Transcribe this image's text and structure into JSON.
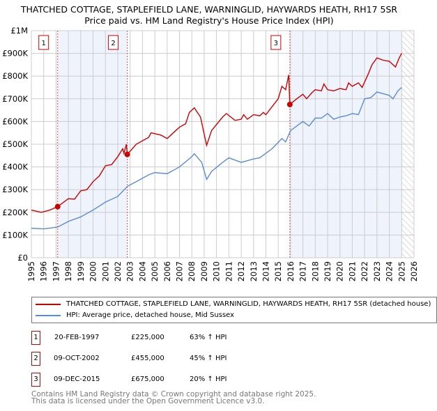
{
  "chart_data": {
    "type": "line",
    "title": "THATCHED COTTAGE, STAPLEFIELD LANE, WARNINGLID, HAYWARDS HEATH, RH17 5SR",
    "subtitle": "Price paid vs. HM Land Registry's House Price Index (HPI)",
    "xlim": [
      1995,
      2026
    ],
    "ylim": [
      0,
      1000000
    ],
    "x_ticks": [
      "1995",
      "1996",
      "1997",
      "1998",
      "1999",
      "2000",
      "2001",
      "2002",
      "2003",
      "2004",
      "2005",
      "2006",
      "2007",
      "2008",
      "2009",
      "2010",
      "2011",
      "2012",
      "2013",
      "2014",
      "2015",
      "2016",
      "2017",
      "2018",
      "2019",
      "2020",
      "2021",
      "2022",
      "2023",
      "2024",
      "2025",
      "2026"
    ],
    "y_ticks": [
      {
        "v": 0,
        "label": "£0"
      },
      {
        "v": 100000,
        "label": "£100K"
      },
      {
        "v": 200000,
        "label": "£200K"
      },
      {
        "v": 300000,
        "label": "£300K"
      },
      {
        "v": 400000,
        "label": "£400K"
      },
      {
        "v": 500000,
        "label": "£500K"
      },
      {
        "v": 600000,
        "label": "£600K"
      },
      {
        "v": 700000,
        "label": "£700K"
      },
      {
        "v": 800000,
        "label": "£800K"
      },
      {
        "v": 900000,
        "label": "£900K"
      },
      {
        "v": 1000000,
        "label": "£1M"
      }
    ],
    "grid": true,
    "series": [
      {
        "name": "THATCHED COTTAGE, STAPLEFIELD LANE, WARNINGLID, HAYWARDS HEATH, RH17 5SR (detached house)",
        "color": "#cc0000",
        "points": [
          [
            1995,
            210000
          ],
          [
            1995.8,
            200000
          ],
          [
            1996.5,
            210000
          ],
          [
            1997.13,
            225000
          ],
          [
            1998,
            260000
          ],
          [
            1998.5,
            258000
          ],
          [
            1999,
            295000
          ],
          [
            1999.5,
            300000
          ],
          [
            2000,
            335000
          ],
          [
            2000.5,
            360000
          ],
          [
            2001,
            405000
          ],
          [
            2001.5,
            410000
          ],
          [
            2002,
            445000
          ],
          [
            2002.4,
            480000
          ],
          [
            2002.5,
            460000
          ],
          [
            2002.7,
            500000
          ],
          [
            2002.77,
            455000
          ],
          [
            2003.5,
            500000
          ],
          [
            2004.5,
            530000
          ],
          [
            2004.7,
            550000
          ],
          [
            2005.5,
            540000
          ],
          [
            2006,
            525000
          ],
          [
            2006.5,
            550000
          ],
          [
            2007,
            575000
          ],
          [
            2007.5,
            590000
          ],
          [
            2007.8,
            640000
          ],
          [
            2008.2,
            660000
          ],
          [
            2008.7,
            620000
          ],
          [
            2009.2,
            495000
          ],
          [
            2009.6,
            560000
          ],
          [
            2010.5,
            620000
          ],
          [
            2010.8,
            635000
          ],
          [
            2011.5,
            605000
          ],
          [
            2012,
            610000
          ],
          [
            2012.2,
            630000
          ],
          [
            2012.5,
            610000
          ],
          [
            2013,
            630000
          ],
          [
            2013.5,
            625000
          ],
          [
            2013.8,
            640000
          ],
          [
            2014,
            630000
          ],
          [
            2014.5,
            665000
          ],
          [
            2015,
            700000
          ],
          [
            2015.3,
            755000
          ],
          [
            2015.6,
            740000
          ],
          [
            2015.85,
            805000
          ],
          [
            2015.94,
            675000
          ],
          [
            2016.5,
            700000
          ],
          [
            2017,
            720000
          ],
          [
            2017.3,
            700000
          ],
          [
            2017.7,
            725000
          ],
          [
            2018,
            740000
          ],
          [
            2018.5,
            735000
          ],
          [
            2018.7,
            765000
          ],
          [
            2019,
            740000
          ],
          [
            2019.5,
            735000
          ],
          [
            2020,
            745000
          ],
          [
            2020.5,
            740000
          ],
          [
            2020.7,
            770000
          ],
          [
            2021,
            755000
          ],
          [
            2021.5,
            770000
          ],
          [
            2021.8,
            750000
          ],
          [
            2022.3,
            810000
          ],
          [
            2022.6,
            850000
          ],
          [
            2023,
            880000
          ],
          [
            2023.5,
            870000
          ],
          [
            2024,
            865000
          ],
          [
            2024.5,
            840000
          ],
          [
            2024.8,
            880000
          ],
          [
            2025,
            900000
          ]
        ]
      },
      {
        "name": "HPI: Average price, detached house, Mid Sussex",
        "color": "#5b8bd0",
        "points": [
          [
            1995,
            130000
          ],
          [
            1996,
            127000
          ],
          [
            1997.13,
            135000
          ],
          [
            1998,
            160000
          ],
          [
            1999,
            180000
          ],
          [
            2000,
            210000
          ],
          [
            2001,
            245000
          ],
          [
            2002,
            270000
          ],
          [
            2002.8,
            315000
          ],
          [
            2003.5,
            335000
          ],
          [
            2004.5,
            365000
          ],
          [
            2005,
            375000
          ],
          [
            2006,
            370000
          ],
          [
            2007,
            400000
          ],
          [
            2008,
            445000
          ],
          [
            2008.2,
            458000
          ],
          [
            2008.8,
            420000
          ],
          [
            2009.2,
            345000
          ],
          [
            2009.6,
            380000
          ],
          [
            2010.5,
            420000
          ],
          [
            2011,
            440000
          ],
          [
            2012,
            420000
          ],
          [
            2013,
            435000
          ],
          [
            2013.5,
            440000
          ],
          [
            2014,
            460000
          ],
          [
            2014.5,
            480000
          ],
          [
            2015.3,
            525000
          ],
          [
            2015.6,
            510000
          ],
          [
            2016,
            560000
          ],
          [
            2016.5,
            580000
          ],
          [
            2017,
            600000
          ],
          [
            2017.5,
            580000
          ],
          [
            2018,
            615000
          ],
          [
            2018.5,
            615000
          ],
          [
            2019,
            635000
          ],
          [
            2019.5,
            610000
          ],
          [
            2020,
            620000
          ],
          [
            2020.5,
            625000
          ],
          [
            2021,
            635000
          ],
          [
            2021.5,
            630000
          ],
          [
            2022,
            700000
          ],
          [
            2022.5,
            705000
          ],
          [
            2023,
            730000
          ],
          [
            2024,
            715000
          ],
          [
            2024.3,
            700000
          ],
          [
            2024.7,
            735000
          ],
          [
            2025,
            750000
          ]
        ]
      }
    ],
    "sales": [
      {
        "label": "1",
        "x": 1997.13,
        "value": 225000
      },
      {
        "label": "2",
        "x": 2002.77,
        "value": 455000
      },
      {
        "label": "3",
        "x": 2015.94,
        "value": 675000
      }
    ],
    "shaded_ranges": [
      [
        1997.13,
        2002.77
      ],
      [
        2015.94,
        2025
      ]
    ],
    "hatched_from": 2025
  },
  "legend": {
    "red": "THATCHED COTTAGE, STAPLEFIELD LANE, WARNINGLID, HAYWARDS HEATH, RH17 5SR (detached house)",
    "blue": "HPI: Average price, detached house, Mid Sussex"
  },
  "transactions": [
    {
      "num": "1",
      "date": "20-FEB-1997",
      "price": "£225,000",
      "hpi": "63% ↑ HPI"
    },
    {
      "num": "2",
      "date": "09-OCT-2002",
      "price": "£455,000",
      "hpi": "45% ↑ HPI"
    },
    {
      "num": "3",
      "date": "09-DEC-2015",
      "price": "£675,000",
      "hpi": "20% ↑ HPI"
    }
  ],
  "footer": [
    "Contains HM Land Registry data © Crown copyright and database right 2025.",
    "This data is licensed under the Open Government Licence v3.0."
  ]
}
